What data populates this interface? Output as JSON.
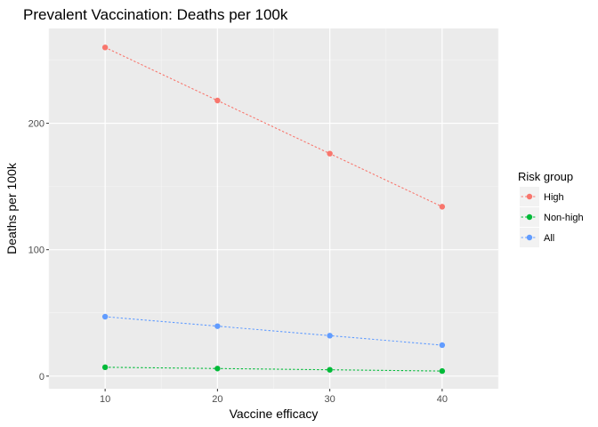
{
  "chart_data": {
    "type": "line",
    "title": "Prevalent Vaccination: Deaths per 100k",
    "xlabel": "Vaccine efficacy",
    "ylabel": "Deaths per 100k",
    "x": [
      10,
      20,
      30,
      40
    ],
    "xlim": [
      5,
      45
    ],
    "ylim": [
      -10,
      275
    ],
    "xticks": [
      10,
      20,
      30,
      40
    ],
    "yticks": [
      0,
      100,
      200
    ],
    "grid": true,
    "line_style": "dotted",
    "legend": {
      "title": "Risk group",
      "position": "right"
    },
    "series": [
      {
        "name": "High",
        "color": "#F8766D",
        "values": [
          260,
          218,
          176,
          134
        ]
      },
      {
        "name": "Non-high",
        "color": "#00BA38",
        "values": [
          7,
          6,
          5,
          4
        ]
      },
      {
        "name": "All",
        "color": "#619CFF",
        "values": [
          47,
          39.5,
          32,
          24.5
        ]
      }
    ]
  }
}
